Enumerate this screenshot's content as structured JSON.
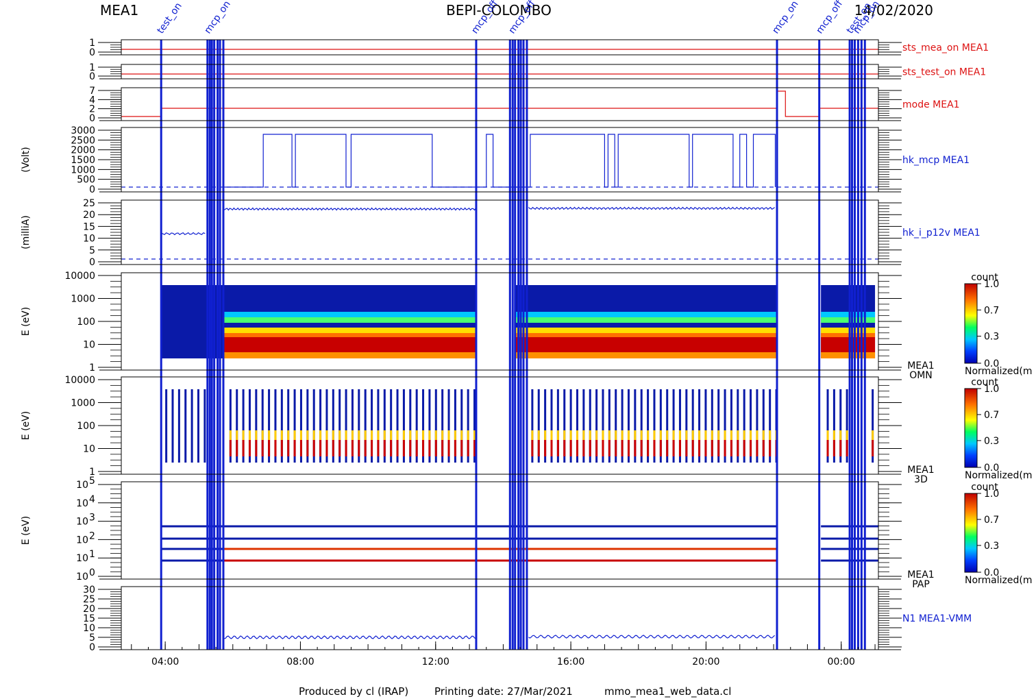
{
  "header": {
    "left": "MEA1",
    "center": "BEPI-COLOMBO",
    "right": "14/02/2020"
  },
  "footer": {
    "produced": "Produced by cl (IRAP)",
    "printing": "Printing date: 27/Mar/2021",
    "file": "mmo_mea1_web_data.cl"
  },
  "colors": {
    "red": "#dd1111",
    "blue": "#1020d0",
    "black": "#000000"
  },
  "colorbar": {
    "title": "count",
    "unit": "Normalized(m",
    "ticks": [
      "1.0",
      "0.7",
      "0.3",
      "0.0"
    ]
  },
  "chart_data": {
    "type": "line",
    "x_axis": {
      "ticks": [
        "04:00",
        "08:00",
        "12:00",
        "16:00",
        "20:00",
        "00:00"
      ]
    },
    "events": {
      "lines_hours": [
        3.88,
        5.25,
        5.32,
        5.38,
        5.45,
        5.55,
        5.62,
        5.72,
        13.2,
        14.2,
        14.28,
        14.35,
        14.45,
        14.52,
        14.6,
        14.7,
        22.1,
        23.35,
        24.25,
        24.32,
        24.4,
        24.5,
        24.6,
        24.7
      ],
      "labels": [
        "test_on",
        "mcp_on",
        "mcp_off",
        "mcp_off",
        "mcp_on",
        "mcp_off",
        "test_on",
        "mcp_on"
      ]
    },
    "panels": [
      {
        "label": "sts_mea_on MEA1",
        "label_color": "#dd1111",
        "yticks": [
          "1",
          "0"
        ],
        "kind": "line"
      },
      {
        "label": "sts_test_on MEA1",
        "label_color": "#dd1111",
        "yticks": [
          "1",
          "0"
        ],
        "kind": "line"
      },
      {
        "label": "mode MEA1",
        "label_color": "#dd1111",
        "yticks": [
          "7",
          "4",
          "2",
          "0"
        ],
        "kind": "line"
      },
      {
        "label": "hk_mcp MEA1",
        "label_color": "#1020d0",
        "ytitle": "(Volt)",
        "yticks": [
          "3000",
          "2500",
          "2000",
          "1500",
          "1000",
          "500",
          "0"
        ],
        "kind": "line"
      },
      {
        "label": "hk_i_p12v MEA1",
        "label_color": "#1020d0",
        "ytitle": "(milliA)",
        "yticks": [
          "25",
          "20",
          "15",
          "10",
          "5",
          "0"
        ],
        "kind": "line"
      },
      {
        "label": "MEA1",
        "label2": "OMN",
        "label_color": "#000000",
        "ytitle": "E (eV)",
        "yticks": [
          "10000",
          "1000",
          "100",
          "10",
          "1"
        ],
        "kind": "spectrogram"
      },
      {
        "label": "MEA1",
        "label2": "3D",
        "label_color": "#000000",
        "ytitle": "E (eV)",
        "yticks": [
          "10000",
          "1000",
          "100",
          "10",
          "1"
        ],
        "kind": "spectrogram"
      },
      {
        "label": "MEA1",
        "label2": "PAP",
        "label_color": "#000000",
        "ytitle": "E (eV)",
        "yticks_base": "10",
        "yticks_exp": [
          "5",
          "4",
          "3",
          "2",
          "1",
          "0"
        ],
        "kind": "spectrogram"
      },
      {
        "label": "N1 MEA1-VMM",
        "label_color": "#1020d0",
        "yticks": [
          "30",
          "25",
          "20",
          "15",
          "10",
          "5",
          "0"
        ],
        "kind": "line"
      }
    ]
  }
}
